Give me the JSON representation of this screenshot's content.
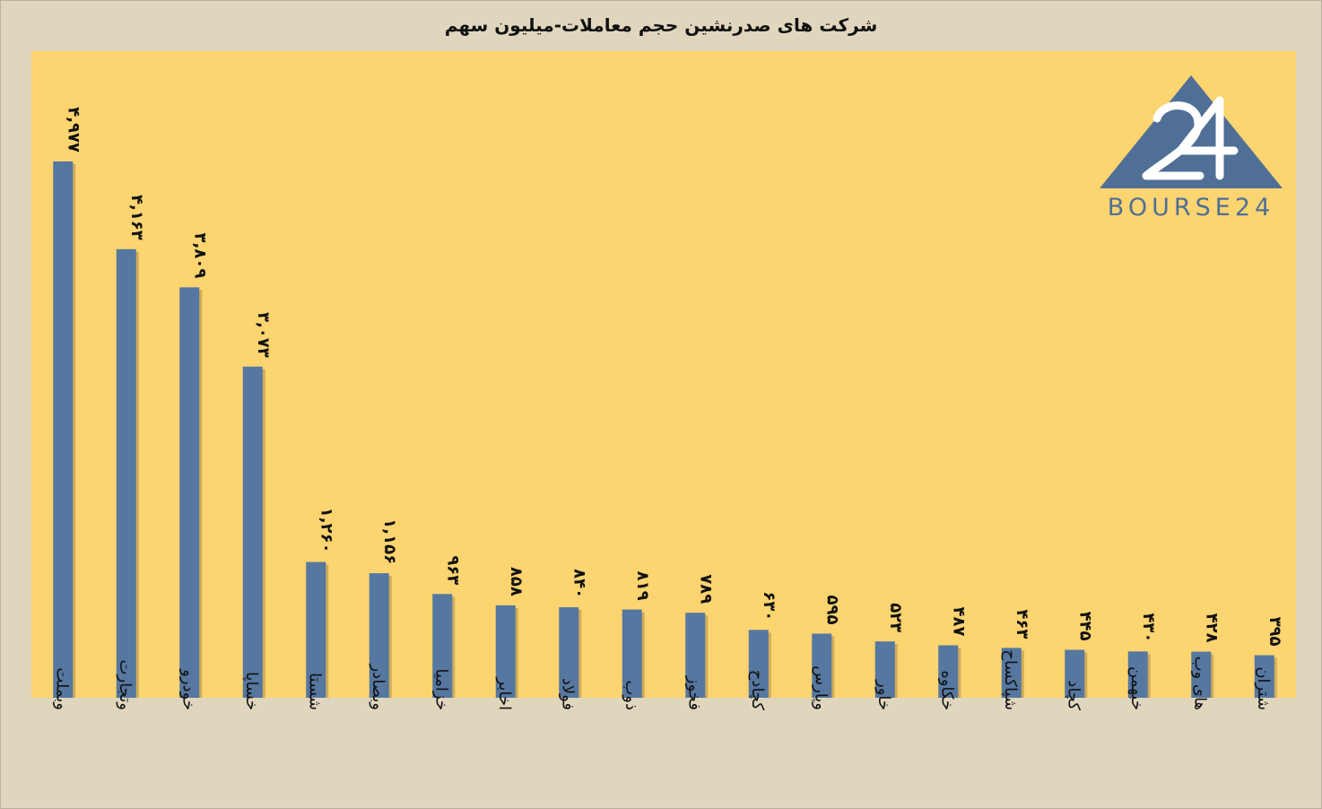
{
  "chart_data": {
    "type": "bar",
    "title": "شرکت های صدرنشین حجم معاملات-میلیون سهم",
    "xlabel": "",
    "ylabel": "",
    "ylim": [
      0,
      5500
    ],
    "grid": false,
    "legend": "none",
    "categories": [
      "وبملت",
      "وتجارت",
      "خودرو",
      "خساپا",
      "شستا",
      "وبصادر",
      "خزامیا",
      "اخابر",
      "فولاد",
      "ذوب",
      "فخوز",
      "کچادح",
      "وپارس",
      "خاور",
      "خکاوه",
      "شپاکساح",
      "کچاد",
      "خبهمن",
      "های وب",
      "شتران"
    ],
    "values": [
      4977,
      4163,
      3809,
      3073,
      1260,
      1156,
      963,
      858,
      840,
      819,
      789,
      630,
      595,
      523,
      487,
      463,
      445,
      430,
      428,
      395
    ],
    "value_labels": [
      "۴,۹۷۷",
      "۴,۱۶۳",
      "۳,۸۰۹",
      "۳,۰۷۳",
      "۱,۲۶۰",
      "۱,۱۵۶",
      "۹۶۳",
      "۸۵۸",
      "۸۴۰",
      "۸۱۹",
      "۷۸۹",
      "۶۳۰",
      "۵۹۵",
      "۵۲۳",
      "۴۸۷",
      "۴۶۳",
      "۴۴۵",
      "۴۳۰",
      "۴۲۸",
      "۳۹۵"
    ]
  },
  "logo": {
    "text": "BOURSE24",
    "mark": "24"
  },
  "colors": {
    "plot_bg": "#fcd470",
    "bar": "#5577a0",
    "page_bg": "#e0d6bd",
    "logo": "#4f6f96"
  }
}
